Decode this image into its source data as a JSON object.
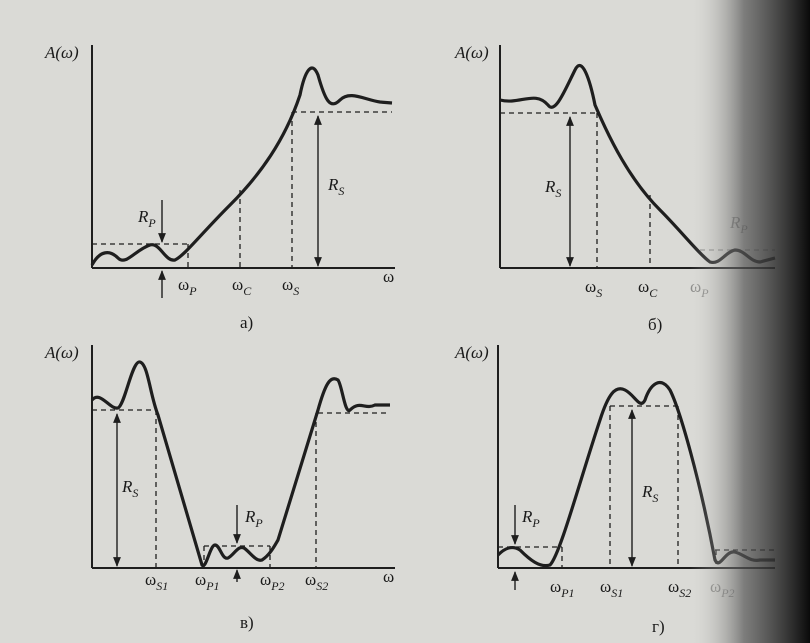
{
  "panels": [
    {
      "caption": "а)",
      "y_axis_label": "A(ω)",
      "labels": [
        {
          "text": "R",
          "sub": "P"
        },
        {
          "text": "R",
          "sub": "S"
        },
        {
          "text": "ω",
          "sub": "P"
        },
        {
          "text": "ω",
          "sub": "C"
        },
        {
          "text": "ω",
          "sub": "S"
        },
        {
          "text": "ω"
        }
      ]
    },
    {
      "caption": "б)",
      "y_axis_label": "A(ω)",
      "labels": [
        {
          "text": "R",
          "sub": "S"
        },
        {
          "text": "ω",
          "sub": "S"
        },
        {
          "text": "ω",
          "sub": "C"
        },
        {
          "text": "ω",
          "sub": "P"
        },
        {
          "text": "R",
          "sub": "P"
        }
      ]
    },
    {
      "caption": "в)",
      "y_axis_label": "A(ω)",
      "labels": [
        {
          "text": "R",
          "sub": "S"
        },
        {
          "text": "R",
          "sub": "P"
        },
        {
          "text": "ω",
          "sub": "S1"
        },
        {
          "text": "ω",
          "sub": "P1"
        },
        {
          "text": "ω",
          "sub": "P2"
        },
        {
          "text": "ω",
          "sub": "S2"
        },
        {
          "text": "ω"
        }
      ]
    },
    {
      "caption": "г)",
      "y_axis_label": "A(ω)",
      "labels": [
        {
          "text": "R",
          "sub": "P"
        },
        {
          "text": "R",
          "sub": "S"
        },
        {
          "text": "ω",
          "sub": "P1"
        },
        {
          "text": "ω",
          "sub": "S1"
        },
        {
          "text": "ω",
          "sub": "S2"
        },
        {
          "text": "ω",
          "sub": "P2"
        }
      ]
    }
  ]
}
